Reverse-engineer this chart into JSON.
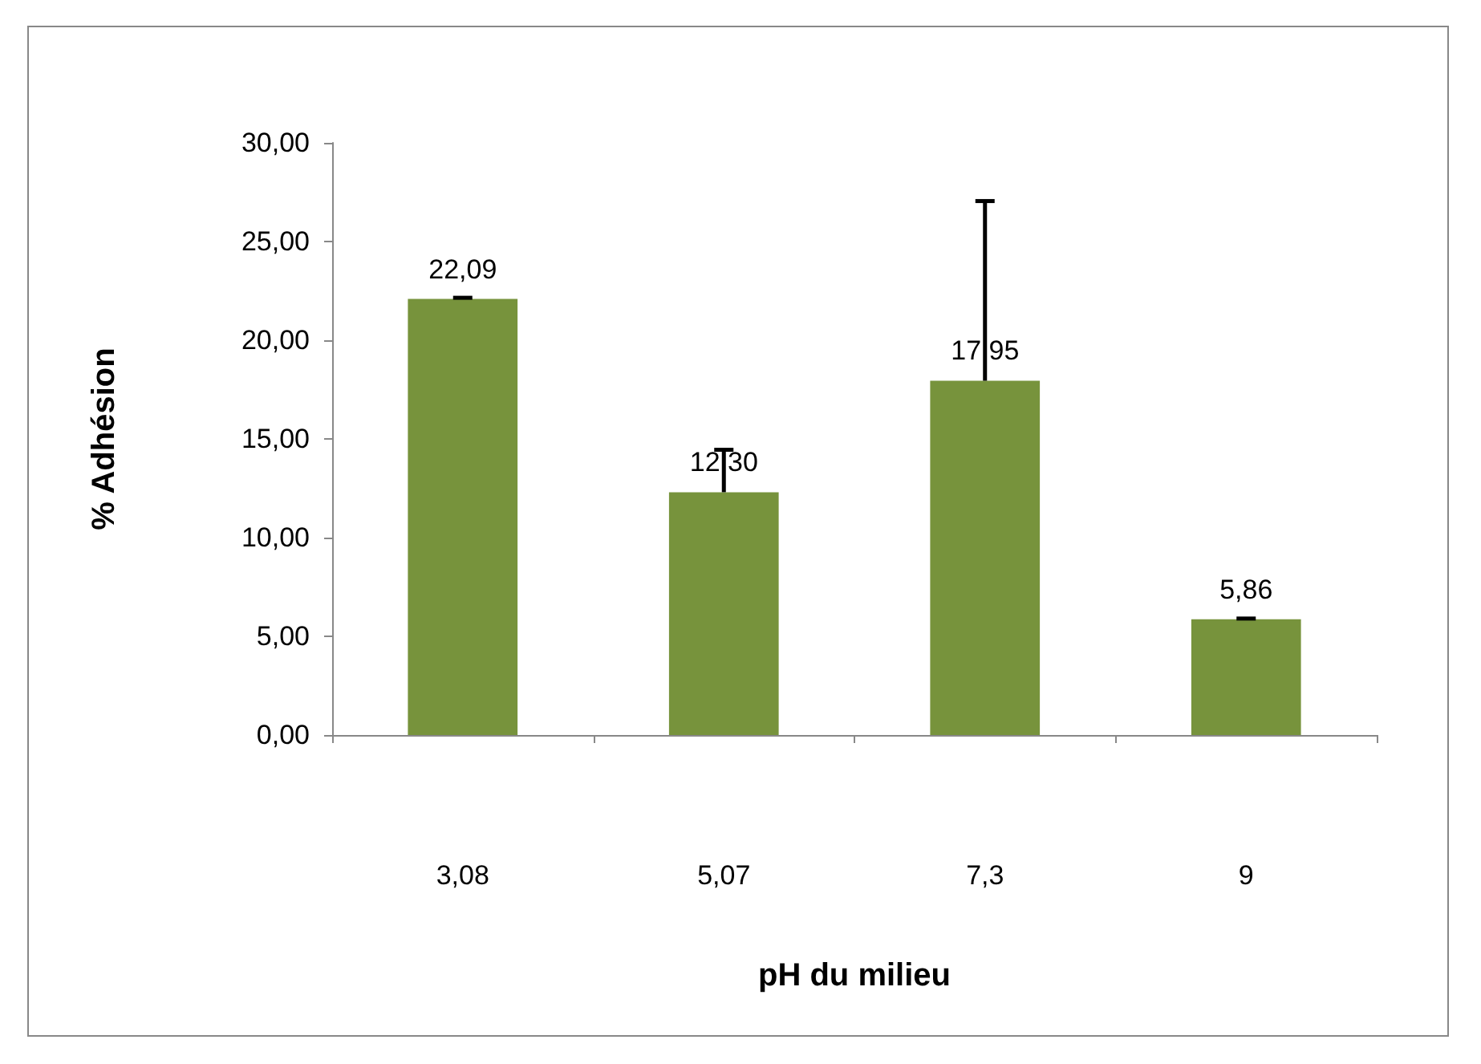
{
  "chart_data": {
    "type": "bar",
    "xlabel": "pH du milieu",
    "ylabel": "% Adhésion",
    "categories": [
      "3,08",
      "5,07",
      "7,3",
      "9"
    ],
    "values": [
      22.09,
      12.3,
      17.95,
      5.86
    ],
    "value_labels": [
      "22,09",
      "12,30",
      "17,95",
      "5,86"
    ],
    "errors": [
      [
        22.09,
        22.15
      ],
      [
        12.3,
        14.45
      ],
      [
        17.95,
        27.05
      ],
      [
        5.86,
        5.9
      ]
    ],
    "color": "#77933c",
    "ylim": [
      0,
      30
    ],
    "yticks": [
      {
        "value": 0,
        "label": "0,00"
      },
      {
        "value": 5,
        "label": "5,00"
      },
      {
        "value": 10,
        "label": "10,00"
      },
      {
        "value": 15,
        "label": "15,00"
      },
      {
        "value": 20,
        "label": "20,00"
      },
      {
        "value": 25,
        "label": "25,00"
      },
      {
        "value": 30,
        "label": "30,00"
      }
    ],
    "grid": false
  }
}
